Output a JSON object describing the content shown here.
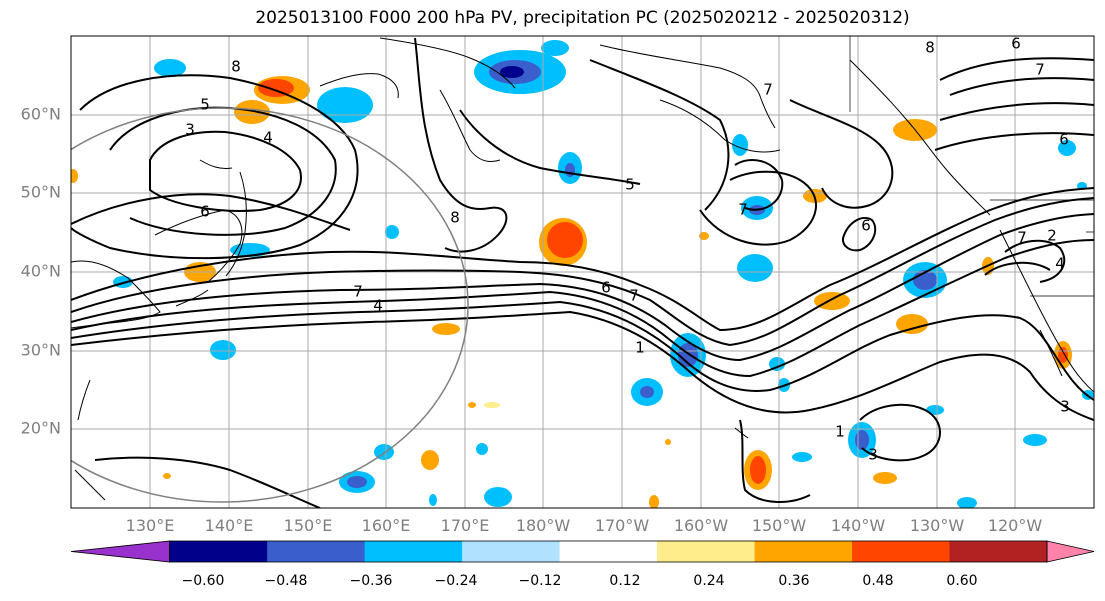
{
  "title": "2025013100 F000 200 hPa PV, precipitation PC (2025020212 - 2025020312)",
  "map": {
    "lon_labels": [
      "130°E",
      "140°E",
      "150°E",
      "160°E",
      "170°E",
      "180°W",
      "170°W",
      "160°W",
      "150°W",
      "140°W",
      "130°W",
      "120°W"
    ],
    "lat_labels": [
      "20°N",
      "30°N",
      "40°N",
      "50°N",
      "60°N"
    ],
    "lon_range": [
      120,
      250
    ],
    "lat_range": [
      10,
      70
    ],
    "grid": true,
    "contour_labels": [
      "8",
      "5",
      "3",
      "4",
      "6",
      "8",
      "7",
      "4",
      "5",
      "7",
      "6",
      "7",
      "1",
      "6",
      "7",
      "4",
      "3",
      "1",
      "2",
      "3",
      "6",
      "6",
      "7",
      "8",
      "7"
    ]
  },
  "colorbar": {
    "ticks": [
      "−0.60",
      "−0.48",
      "−0.36",
      "−0.24",
      "−0.12",
      "0.12",
      "0.24",
      "0.36",
      "0.48",
      "0.60"
    ],
    "colors": [
      "#9932cc",
      "#00008b",
      "#3a5fcd",
      "#00bfff",
      "#b0e2ff",
      "#ffffff",
      "#ffec8b",
      "#ffa500",
      "#ff4500",
      "#b22222",
      "#ff82ab"
    ]
  }
}
